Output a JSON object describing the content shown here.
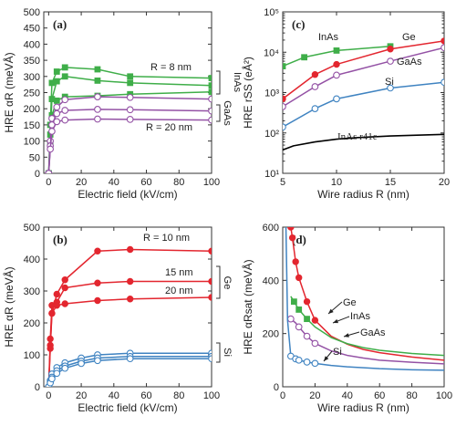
{
  "colors": {
    "green": "#3fae49",
    "red": "#e3262f",
    "purple": "#9452a5",
    "blue": "#3f83c1",
    "black": "#000000"
  },
  "chart_data": [
    {
      "panel": "(a)",
      "type": "line",
      "xlabel": "Electric field (kV/cm)",
      "ylabel": "HRE αR (meVÅ)",
      "xlim": [
        -3,
        100
      ],
      "ylim": [
        0,
        500
      ],
      "xticks": [
        0,
        20,
        40,
        60,
        80,
        100
      ],
      "yticks": [
        0,
        50,
        100,
        150,
        200,
        250,
        300,
        350,
        400,
        450,
        500
      ],
      "grid": false,
      "annotations": [
        "R = 8 nm",
        "R = 20 nm",
        "InAs",
        "GaAs"
      ],
      "series": [
        {
          "color": "green",
          "marker": "square",
          "x": [
            0,
            1,
            2,
            5,
            10,
            30,
            50,
            100
          ],
          "y": [
            0,
            150,
            280,
            315,
            328,
            322,
            300,
            295
          ]
        },
        {
          "color": "green",
          "marker": "square",
          "x": [
            0,
            1,
            2,
            5,
            10,
            30,
            50,
            100
          ],
          "y": [
            0,
            120,
            230,
            285,
            300,
            287,
            280,
            272
          ]
        },
        {
          "color": "green",
          "marker": "square",
          "x": [
            0,
            1,
            2,
            5,
            10,
            30,
            50,
            100
          ],
          "y": [
            0,
            90,
            180,
            225,
            237,
            240,
            245,
            252
          ]
        },
        {
          "color": "purple",
          "marker": "circle",
          "x": [
            0,
            1,
            2,
            5,
            10,
            30,
            50,
            100
          ],
          "y": [
            0,
            100,
            170,
            205,
            228,
            237,
            235,
            230
          ]
        },
        {
          "color": "purple",
          "marker": "circle",
          "x": [
            0,
            1,
            2,
            5,
            10,
            30,
            50,
            100
          ],
          "y": [
            0,
            85,
            150,
            185,
            195,
            198,
            197,
            193
          ]
        },
        {
          "color": "purple",
          "marker": "circle",
          "x": [
            0,
            1,
            2,
            5,
            10,
            30,
            50,
            100
          ],
          "y": [
            0,
            75,
            130,
            160,
            165,
            168,
            167,
            165
          ]
        }
      ]
    },
    {
      "panel": "(b)",
      "type": "line",
      "xlabel": "Electric field (kV/cm)",
      "ylabel": "HRE αR (meVÅ)",
      "xlim": [
        -3,
        100
      ],
      "ylim": [
        0,
        500
      ],
      "xticks": [
        0,
        20,
        40,
        60,
        80,
        100
      ],
      "yticks": [
        0,
        100,
        200,
        300,
        400,
        500
      ],
      "grid": false,
      "annotations": [
        "R = 10 nm",
        "15 nm",
        "20 nm",
        "Ge",
        "Si"
      ],
      "series": [
        {
          "color": "red",
          "marker": "circle",
          "x": [
            0,
            1,
            2,
            5,
            10,
            30,
            50,
            100
          ],
          "y": [
            0,
            120,
            230,
            290,
            335,
            425,
            430,
            425
          ]
        },
        {
          "color": "red",
          "marker": "circle",
          "x": [
            0,
            1,
            2,
            5,
            10,
            30,
            50,
            100
          ],
          "y": [
            0,
            150,
            255,
            265,
            310,
            325,
            330,
            330
          ]
        },
        {
          "color": "red",
          "marker": "circle",
          "x": [
            0,
            1,
            2,
            5,
            10,
            30,
            50,
            100
          ],
          "y": [
            0,
            130,
            230,
            255,
            260,
            270,
            275,
            280
          ]
        },
        {
          "color": "blue",
          "marker": "circle",
          "x": [
            0,
            1,
            2,
            5,
            10,
            20,
            30,
            50,
            100
          ],
          "y": [
            0,
            20,
            40,
            60,
            75,
            90,
            100,
            105,
            105
          ]
        },
        {
          "color": "blue",
          "marker": "circle",
          "x": [
            0,
            1,
            2,
            5,
            10,
            20,
            30,
            50,
            100
          ],
          "y": [
            0,
            15,
            30,
            50,
            65,
            80,
            90,
            95,
            95
          ]
        },
        {
          "color": "blue",
          "marker": "circle",
          "x": [
            0,
            1,
            2,
            5,
            10,
            20,
            30,
            50,
            100
          ],
          "y": [
            0,
            12,
            25,
            42,
            58,
            73,
            82,
            88,
            88
          ]
        }
      ]
    },
    {
      "panel": "(c)",
      "type": "line",
      "xlabel": "Wire radius R (nm)",
      "ylabel": "HRE rSS (eÅ²)",
      "xlim": [
        5,
        20
      ],
      "ylim": [
        10,
        100000
      ],
      "yscale": "log",
      "xticks": [
        5,
        10,
        15,
        20
      ],
      "yticks": [
        10,
        100,
        1000,
        10000,
        100000
      ],
      "yticklabels": [
        "10¹",
        "10²",
        "10³",
        "10⁴",
        "10⁵"
      ],
      "grid": false,
      "annotations": [
        "InAs",
        "Ge",
        "GaAs",
        "Si",
        "InAs r41e"
      ],
      "series": [
        {
          "name": "InAs",
          "color": "green",
          "marker": "square",
          "x": [
            5,
            7,
            10,
            15
          ],
          "y": [
            4500,
            7500,
            11000,
            14000
          ]
        },
        {
          "name": "Ge",
          "color": "red",
          "marker": "circle",
          "x": [
            5,
            8,
            10,
            15,
            20
          ],
          "y": [
            700,
            2800,
            5000,
            12000,
            19000
          ]
        },
        {
          "name": "GaAs",
          "color": "purple",
          "marker": "circle",
          "x": [
            5,
            8,
            10,
            15,
            20
          ],
          "y": [
            450,
            1400,
            2700,
            6000,
            13000
          ]
        },
        {
          "name": "Si",
          "color": "blue",
          "marker": "circle",
          "x": [
            5,
            8,
            10,
            15,
            20
          ],
          "y": [
            140,
            400,
            700,
            1300,
            1800
          ]
        },
        {
          "name": "InAs r41e",
          "color": "black",
          "marker": "none",
          "x": [
            5,
            6,
            8,
            10,
            12,
            15,
            20
          ],
          "y": [
            38,
            48,
            60,
            70,
            77,
            84,
            92
          ]
        }
      ]
    },
    {
      "panel": "(d)",
      "type": "line",
      "xlabel": "Wire radius R (nm)",
      "ylabel": "HRE αRsat (meVÅ)",
      "xlim": [
        0,
        100
      ],
      "ylim": [
        0,
        600
      ],
      "xticks": [
        0,
        20,
        40,
        60,
        80,
        100
      ],
      "yticks": [
        0,
        200,
        400,
        600
      ],
      "grid": false,
      "annotations": [
        "Ge",
        "InAs",
        "GaAs",
        "Si"
      ],
      "series": [
        {
          "name": "Ge",
          "color": "red",
          "marker": "circle",
          "x": [
            5,
            6,
            8,
            10,
            15,
            20,
            30,
            40,
            50,
            60,
            80,
            100
          ],
          "y": [
            600,
            560,
            470,
            410,
            320,
            250,
            190,
            160,
            140,
            128,
            112,
            100
          ],
          "marker_x": [
            5,
            6,
            8,
            10,
            15,
            20
          ]
        },
        {
          "name": "InAs",
          "color": "green",
          "marker": "square",
          "x": [
            5,
            7,
            10,
            15,
            20,
            30,
            40,
            50,
            60,
            80,
            100
          ],
          "y": [
            340,
            320,
            290,
            255,
            225,
            185,
            162,
            147,
            137,
            125,
            118
          ],
          "marker_x": [
            7,
            10,
            15
          ]
        },
        {
          "name": "GaAs",
          "color": "purple",
          "marker": "circle",
          "x": [
            5,
            8,
            10,
            15,
            20,
            30,
            40,
            50,
            60,
            80,
            100
          ],
          "y": [
            255,
            240,
            225,
            190,
            163,
            135,
            118,
            108,
            100,
            92,
            86
          ],
          "marker_x": [
            5,
            10,
            15,
            20
          ]
        },
        {
          "name": "Si",
          "color": "blue",
          "marker": "circle",
          "x": [
            2,
            3,
            5,
            8,
            10,
            15,
            20,
            30,
            40,
            60,
            80,
            100
          ],
          "y": [
            600,
            250,
            115,
            105,
            100,
            93,
            88,
            80,
            75,
            68,
            64,
            62
          ],
          "marker_x": [
            5,
            8,
            10,
            15,
            20
          ]
        }
      ]
    }
  ]
}
